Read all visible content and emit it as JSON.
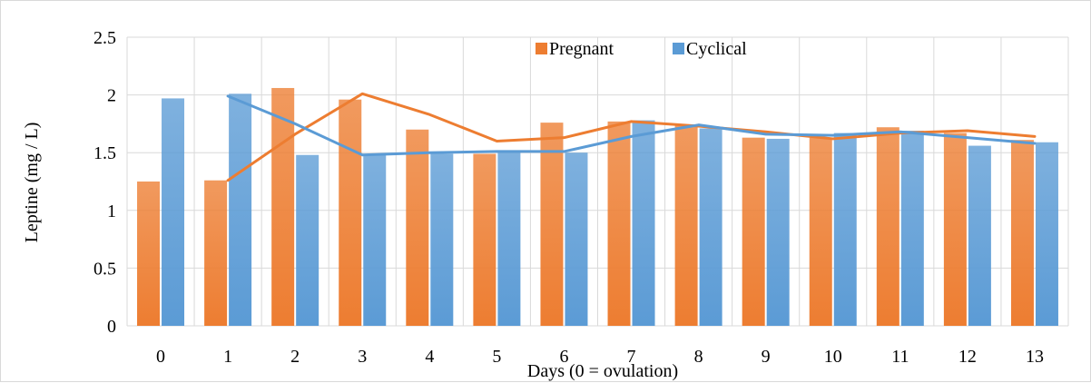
{
  "chart_data": {
    "type": "bar",
    "title": "",
    "xlabel": "Days (0 = ovulation)",
    "ylabel": "Leptine (mg / L)",
    "categories": [
      "0",
      "1",
      "2",
      "3",
      "4",
      "5",
      "6",
      "7",
      "8",
      "9",
      "10",
      "11",
      "12",
      "13"
    ],
    "ylim": [
      0,
      2.5
    ],
    "yticks": [
      "0",
      "0.5",
      "1",
      "1.5",
      "2",
      "2.5"
    ],
    "grid": true,
    "legend_position": "top",
    "series": [
      {
        "name": "Pregnant",
        "color": "#ED7D31",
        "values": [
          1.25,
          1.26,
          2.06,
          1.96,
          1.7,
          1.49,
          1.76,
          1.77,
          1.74,
          1.63,
          1.63,
          1.72,
          1.67,
          1.61
        ]
      },
      {
        "name": "Cyclical",
        "color": "#5B9BD5",
        "values": [
          1.97,
          2.01,
          1.48,
          1.49,
          1.49,
          1.52,
          1.5,
          1.78,
          1.71,
          1.62,
          1.67,
          1.69,
          1.56,
          1.59
        ]
      }
    ],
    "trendlines": [
      {
        "series": "Pregnant",
        "color": "#ED7D31",
        "points": [
          [
            1,
            1.26
          ],
          [
            2,
            1.66
          ],
          [
            3,
            2.01
          ],
          [
            4,
            1.83
          ],
          [
            5,
            1.6
          ],
          [
            6,
            1.63
          ],
          [
            7,
            1.77
          ],
          [
            8,
            1.73
          ],
          [
            9,
            1.68
          ],
          [
            10,
            1.62
          ],
          [
            11,
            1.67
          ],
          [
            12,
            1.69
          ],
          [
            13,
            1.64
          ]
        ]
      },
      {
        "series": "Cyclical",
        "color": "#5B9BD5",
        "points": [
          [
            1,
            1.99
          ],
          [
            2,
            1.75
          ],
          [
            3,
            1.48
          ],
          [
            4,
            1.5
          ],
          [
            5,
            1.51
          ],
          [
            6,
            1.51
          ],
          [
            7,
            1.64
          ],
          [
            8,
            1.74
          ],
          [
            9,
            1.66
          ],
          [
            10,
            1.65
          ],
          [
            11,
            1.68
          ],
          [
            12,
            1.63
          ],
          [
            13,
            1.58
          ]
        ]
      }
    ]
  }
}
